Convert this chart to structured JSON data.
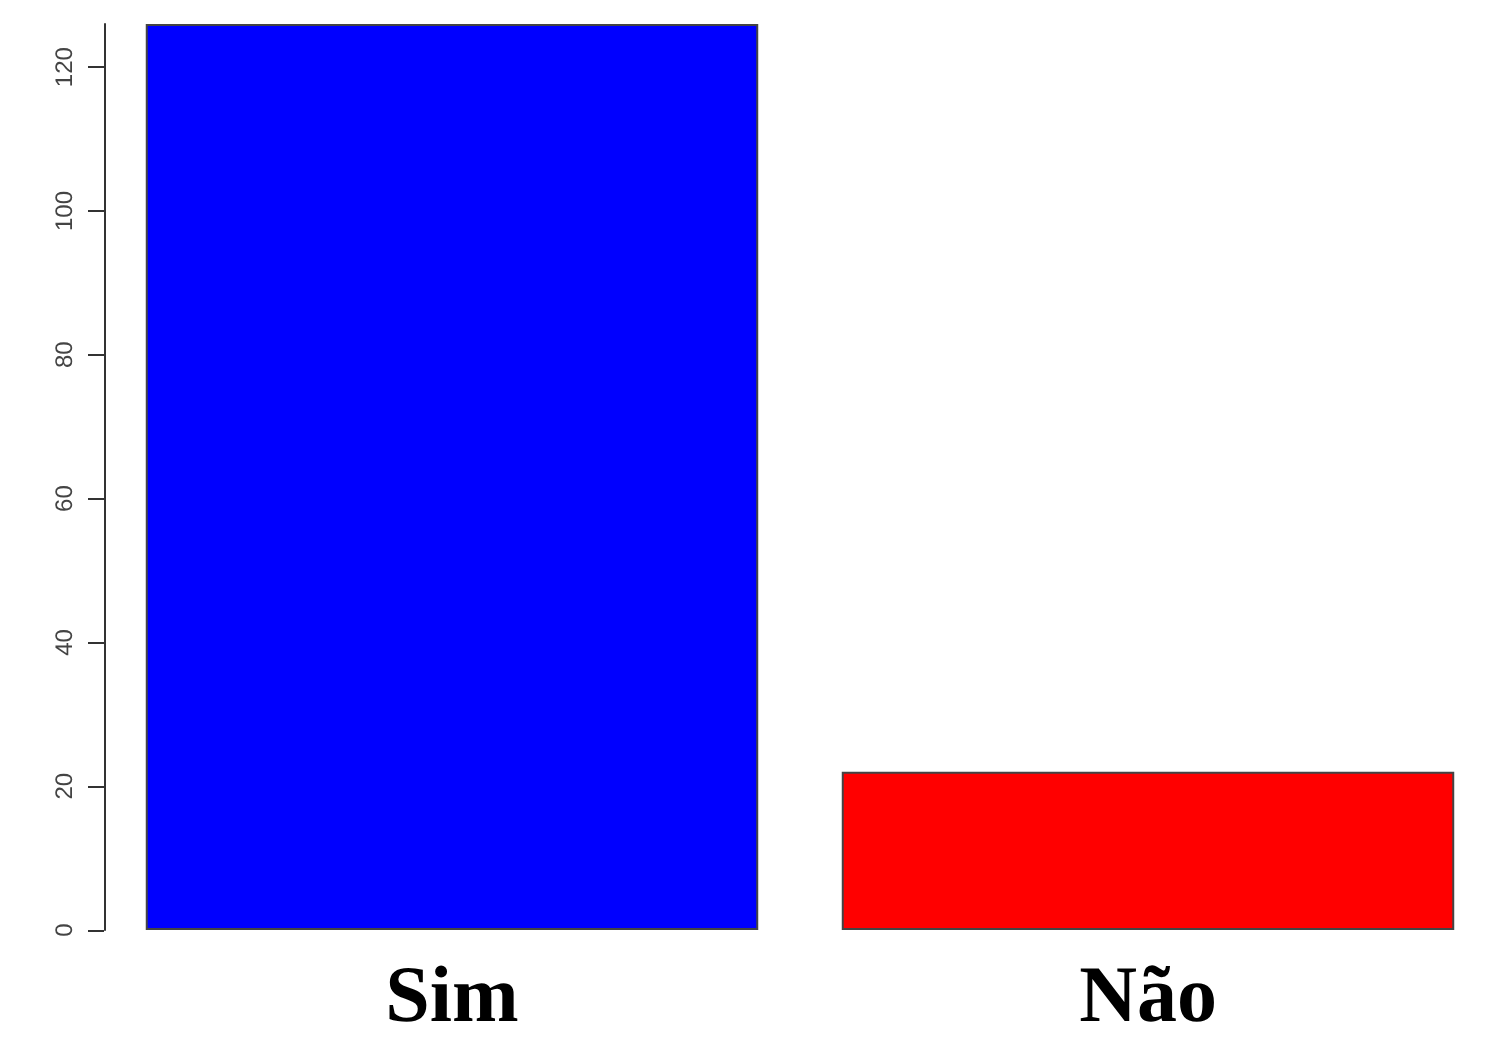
{
  "chart_data": {
    "type": "bar",
    "categories": [
      "Sim",
      "Não"
    ],
    "values": [
      126,
      22
    ],
    "colors": [
      "#0000ff",
      "#ff0000"
    ],
    "ylim": [
      0,
      126
    ],
    "yticks": [
      0,
      20,
      40,
      60,
      80,
      100,
      120
    ],
    "grid": false
  }
}
